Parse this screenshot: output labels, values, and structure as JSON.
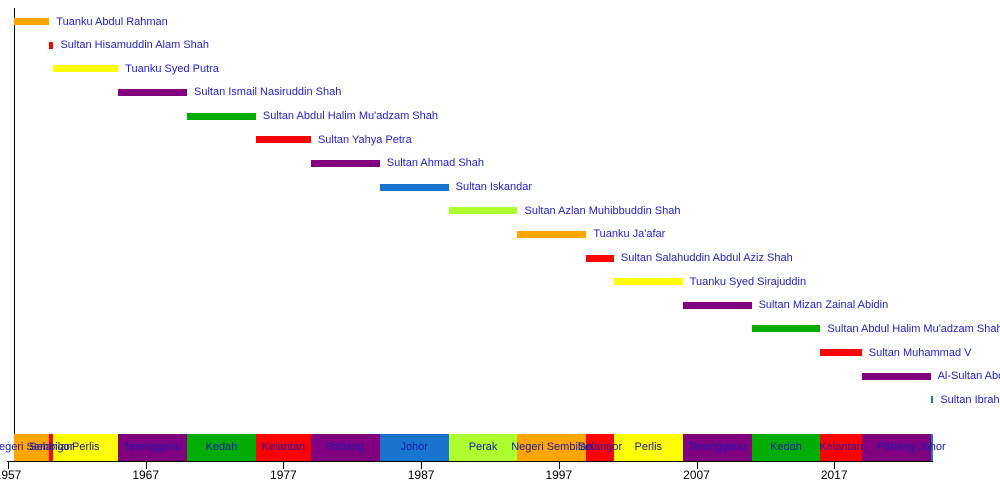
{
  "chart_data": {
    "type": "bar",
    "subtype": "gantt_timeline",
    "title": "",
    "xlabel": "",
    "ylabel": "",
    "grid": false,
    "legend": "none",
    "x_ticks": [
      1957,
      1967,
      1977,
      1987,
      1997,
      2007,
      2017
    ],
    "x_range": [
      1957.45,
      2024.6
    ],
    "reigns": [
      {
        "label": "Tuanku Abdul Rahman",
        "state": "Negeri Sembilan",
        "start": 1957.45,
        "end": 1960.0
      },
      {
        "label": "Sultan Hisamuddin Alam Shah",
        "state": "Selangor",
        "start": 1960.0,
        "end": 1960.3
      },
      {
        "label": "Tuanku Syed Putra",
        "state": "Perlis",
        "start": 1960.3,
        "end": 1965.0
      },
      {
        "label": "Sultan Ismail Nasiruddin Shah",
        "state": "Terengganu",
        "start": 1965.0,
        "end": 1970.0
      },
      {
        "label": "Sultan Abdul Halim Mu'adzam Shah",
        "state": "Kedah",
        "start": 1970.0,
        "end": 1975.0
      },
      {
        "label": "Sultan Yahya Petra",
        "state": "Kelantan",
        "start": 1975.0,
        "end": 1979.0
      },
      {
        "label": "Sultan Ahmad Shah",
        "state": "Pahang",
        "start": 1979.0,
        "end": 1984.0
      },
      {
        "label": "Sultan Iskandar",
        "state": "Johor",
        "start": 1984.0,
        "end": 1989.0
      },
      {
        "label": "Sultan Azlan Muhibbuddin Shah",
        "state": "Perak",
        "start": 1989.0,
        "end": 1994.0
      },
      {
        "label": "Tuanku Ja'afar",
        "state": "Negeri Sembilan",
        "start": 1994.0,
        "end": 1999.0
      },
      {
        "label": "Sultan Salahuddin Abdul Aziz Shah",
        "state": "Selangor",
        "start": 1999.0,
        "end": 2001.0
      },
      {
        "label": "Tuanku Syed Sirajuddin",
        "state": "Perlis",
        "start": 2001.0,
        "end": 2006.0
      },
      {
        "label": "Sultan Mizan Zainal Abidin",
        "state": "Terengganu",
        "start": 2006.0,
        "end": 2011.0
      },
      {
        "label": "Sultan Abdul Halim Mu'adzam Shah",
        "state": "Kedah",
        "start": 2011.0,
        "end": 2016.0
      },
      {
        "label": "Sultan Muhammad V",
        "state": "Kelantan",
        "start": 2016.0,
        "end": 2019.0
      },
      {
        "label": "Al-Sultan Abdullah",
        "state": "Pahang",
        "start": 2019.0,
        "end": 2024.0
      },
      {
        "label": "Sultan Ibrahim",
        "state": "Johor",
        "start": 2024.0,
        "end": 2024.2
      }
    ],
    "state_colors": {
      "Negeri Sembilan": "#ffa500",
      "Selangor": "#ff0000",
      "Perlis": "#ffff00",
      "Terengganu": "#800080",
      "Kedah": "#00ad00",
      "Kelantan": "#ff0000",
      "Pahang": "#800080",
      "Johor": "#1874cd",
      "Perak": "#adff2f"
    },
    "colors": {
      "reign_label_text": "#2222cc",
      "state_label_text": "#1a1ab0",
      "axis": "#000000"
    }
  }
}
